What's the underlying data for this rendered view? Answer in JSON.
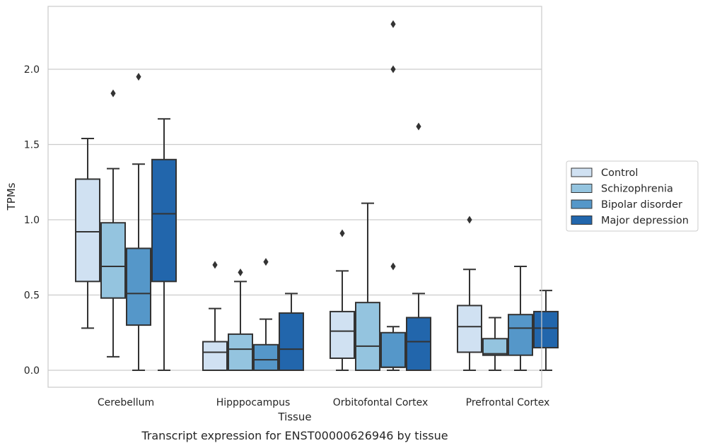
{
  "caption": "Transcript expression for ENST00000626946 by tissue",
  "chart_data": {
    "type": "boxplot",
    "title": "",
    "xlabel": "Tissue",
    "ylabel": "TPMs",
    "ylim": [
      -0.11,
      2.42
    ],
    "yticks": [
      0.0,
      0.5,
      1.0,
      1.5,
      2.0
    ],
    "ytick_labels": [
      "0.0",
      "0.5",
      "1.0",
      "1.5",
      "2.0"
    ],
    "grid": "horizontal",
    "legend_position": "right",
    "categories": [
      "Cerebellum",
      "Hipppocampus",
      "Orbitofontal Cortex",
      "Prefrontal Cortex"
    ],
    "series": [
      {
        "name": "Control",
        "color": "#d0e1f2",
        "boxes": [
          {
            "whislo": 0.28,
            "q1": 0.59,
            "med": 0.92,
            "q3": 1.27,
            "whishi": 1.54,
            "fliers": []
          },
          {
            "whislo": 0.0,
            "q1": 0.0,
            "med": 0.12,
            "q3": 0.19,
            "whishi": 0.41,
            "fliers": [
              0.7
            ]
          },
          {
            "whislo": 0.0,
            "q1": 0.08,
            "med": 0.26,
            "q3": 0.39,
            "whishi": 0.66,
            "fliers": [
              0.91
            ]
          },
          {
            "whislo": 0.0,
            "q1": 0.12,
            "med": 0.29,
            "q3": 0.43,
            "whishi": 0.67,
            "fliers": [
              1.0
            ]
          }
        ]
      },
      {
        "name": "Schizophrenia",
        "color": "#94c4df",
        "boxes": [
          {
            "whislo": 0.09,
            "q1": 0.48,
            "med": 0.69,
            "q3": 0.98,
            "whishi": 1.34,
            "fliers": [
              1.84
            ]
          },
          {
            "whislo": 0.0,
            "q1": 0.0,
            "med": 0.14,
            "q3": 0.24,
            "whishi": 0.59,
            "fliers": [
              0.65
            ]
          },
          {
            "whislo": 0.0,
            "q1": 0.0,
            "med": 0.16,
            "q3": 0.45,
            "whishi": 1.11,
            "fliers": []
          },
          {
            "whislo": 0.0,
            "q1": 0.1,
            "med": 0.11,
            "q3": 0.21,
            "whishi": 0.35,
            "fliers": []
          }
        ]
      },
      {
        "name": "Bipolar disorder",
        "color": "#5597c9",
        "boxes": [
          {
            "whislo": 0.0,
            "q1": 0.3,
            "med": 0.51,
            "q3": 0.81,
            "whishi": 1.37,
            "fliers": [
              1.95
            ]
          },
          {
            "whislo": 0.0,
            "q1": 0.0,
            "med": 0.07,
            "q3": 0.17,
            "whishi": 0.34,
            "fliers": [
              0.72
            ]
          },
          {
            "whislo": 0.0,
            "q1": 0.02,
            "med": 0.02,
            "q3": 0.25,
            "whishi": 0.29,
            "fliers": [
              0.69,
              2.0,
              2.3
            ]
          },
          {
            "whislo": 0.0,
            "q1": 0.1,
            "med": 0.28,
            "q3": 0.37,
            "whishi": 0.69,
            "fliers": []
          }
        ]
      },
      {
        "name": "Major depression",
        "color": "#2266ac",
        "boxes": [
          {
            "whislo": 0.0,
            "q1": 0.59,
            "med": 1.04,
            "q3": 1.4,
            "whishi": 1.67,
            "fliers": []
          },
          {
            "whislo": 0.0,
            "q1": 0.0,
            "med": 0.14,
            "q3": 0.38,
            "whishi": 0.51,
            "fliers": []
          },
          {
            "whislo": 0.0,
            "q1": 0.0,
            "med": 0.19,
            "q3": 0.35,
            "whishi": 0.51,
            "fliers": [
              1.62
            ]
          },
          {
            "whislo": 0.0,
            "q1": 0.15,
            "med": 0.28,
            "q3": 0.39,
            "whishi": 0.53,
            "fliers": []
          }
        ]
      }
    ]
  },
  "colors": {
    "grid": "#cccccc",
    "frame": "#cccccc",
    "line": "#333333",
    "text": "#262626"
  }
}
